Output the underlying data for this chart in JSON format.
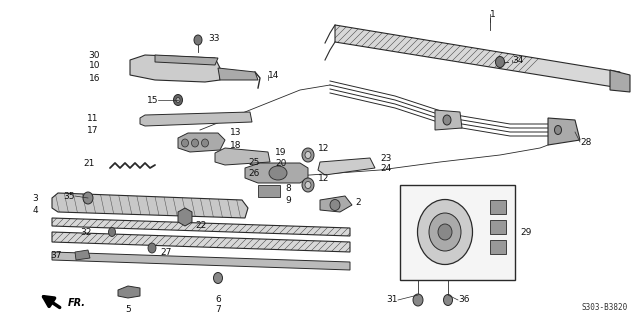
{
  "bg_color": "#ffffff",
  "fig_width": 6.4,
  "fig_height": 3.2,
  "diagram_ref": "S303-B3820"
}
